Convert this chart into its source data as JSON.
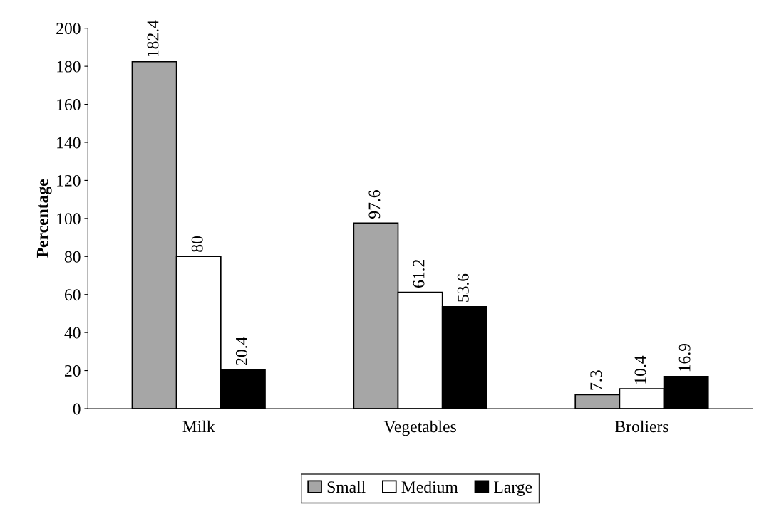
{
  "chart_data": {
    "type": "bar",
    "ylabel": "Percentage",
    "categories": [
      "Milk",
      "Vegetables",
      "Broliers"
    ],
    "series": [
      {
        "name": "Small",
        "color": "#a6a6a6",
        "values": [
          182.4,
          97.6,
          7.3
        ]
      },
      {
        "name": "Medium",
        "color": "#ffffff",
        "values": [
          80,
          61.2,
          10.4
        ]
      },
      {
        "name": "Large",
        "color": "#000000",
        "values": [
          20.4,
          53.6,
          16.9
        ]
      }
    ],
    "ylim": [
      0,
      200
    ],
    "yticks": [
      0,
      20,
      40,
      60,
      80,
      100,
      120,
      140,
      160,
      180,
      200
    ],
    "data_labels": true,
    "legend": "bottom",
    "grid": false
  }
}
